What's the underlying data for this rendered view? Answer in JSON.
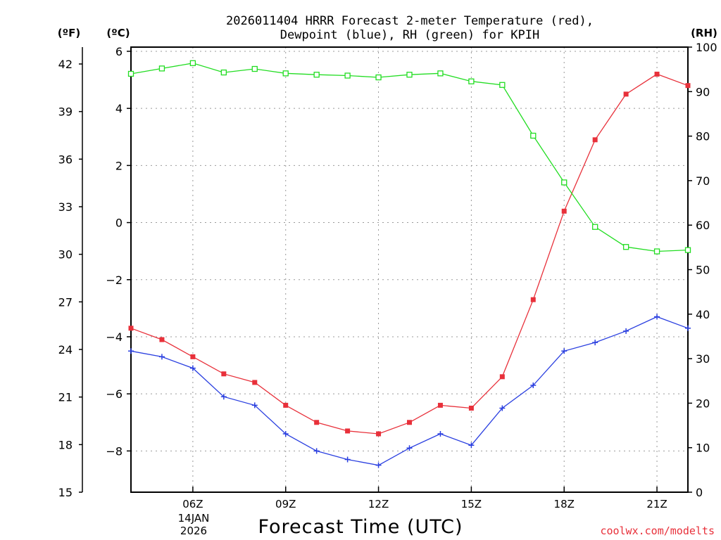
{
  "chart_data": {
    "type": "line",
    "title_line1": "2026011404 HRRR Forecast 2-meter Temperature (red),",
    "title_line2": "Dewpoint (blue), RH (green) for KPIH",
    "xlabel": "Forecast Time (UTC)",
    "left_outer_unit": "(ºF)",
    "left_inner_unit": "(ºC)",
    "right_unit": "(RH)",
    "x_ticks": [
      {
        "hour": 6,
        "label": "06Z"
      },
      {
        "hour": 9,
        "label": "09Z"
      },
      {
        "hour": 12,
        "label": "12Z"
      },
      {
        "hour": 15,
        "label": "15Z"
      },
      {
        "hour": 18,
        "label": "18Z"
      },
      {
        "hour": 21,
        "label": "21Z"
      }
    ],
    "date_label_day": "14JAN",
    "date_label_year": "2026",
    "xlim": [
      4,
      22
    ],
    "celsius_ticks": [
      6,
      4,
      2,
      0,
      -2,
      -4,
      -6,
      -8
    ],
    "celsius_tick_labels": [
      "6",
      "4",
      "2",
      "0",
      "−2",
      "−4",
      "−6",
      "−8"
    ],
    "fahrenheit_ticks": [
      42,
      39,
      36,
      33,
      30,
      27,
      24,
      21,
      18,
      15
    ],
    "rh_ticks": [
      100,
      90,
      80,
      70,
      60,
      50,
      40,
      30,
      20,
      10,
      0
    ],
    "rh_ylim": [
      0,
      100
    ],
    "hours": [
      4,
      5,
      6,
      7,
      8,
      9,
      10,
      11,
      12,
      13,
      14,
      15,
      16,
      17,
      18,
      19,
      20,
      21,
      22
    ],
    "series": [
      {
        "name": "Temperature",
        "unit": "C",
        "color": "#e8303a",
        "marker": "filled-square",
        "values": [
          -3.7,
          -4.1,
          -4.7,
          -5.3,
          -5.6,
          -6.4,
          -7.0,
          -7.3,
          -7.4,
          -7.0,
          -6.4,
          -6.5,
          -5.4,
          -2.7,
          0.4,
          2.9,
          4.5,
          5.2,
          4.8
        ]
      },
      {
        "name": "Dewpoint",
        "unit": "C",
        "color": "#2a3fe0",
        "marker": "plus",
        "values": [
          -4.5,
          -4.7,
          -5.1,
          -6.1,
          -6.4,
          -7.4,
          -8.0,
          -8.3,
          -8.5,
          -7.9,
          -7.4,
          -7.8,
          -6.5,
          -5.7,
          -4.5,
          -4.2,
          -3.8,
          -3.3,
          -3.7
        ]
      },
      {
        "name": "RH",
        "unit": "%",
        "color": "#22dd22",
        "marker": "open-square",
        "values": [
          94,
          95.2,
          96.4,
          94.3,
          95.1,
          94.1,
          93.8,
          93.6,
          93.2,
          93.8,
          94.1,
          92.3,
          91.5,
          80.1,
          69.6,
          59.6,
          55.1,
          54.1,
          54.4
        ]
      }
    ]
  },
  "footer": {
    "credit": "coolwx.com/modelts",
    "credit_color": "#e8303a"
  }
}
